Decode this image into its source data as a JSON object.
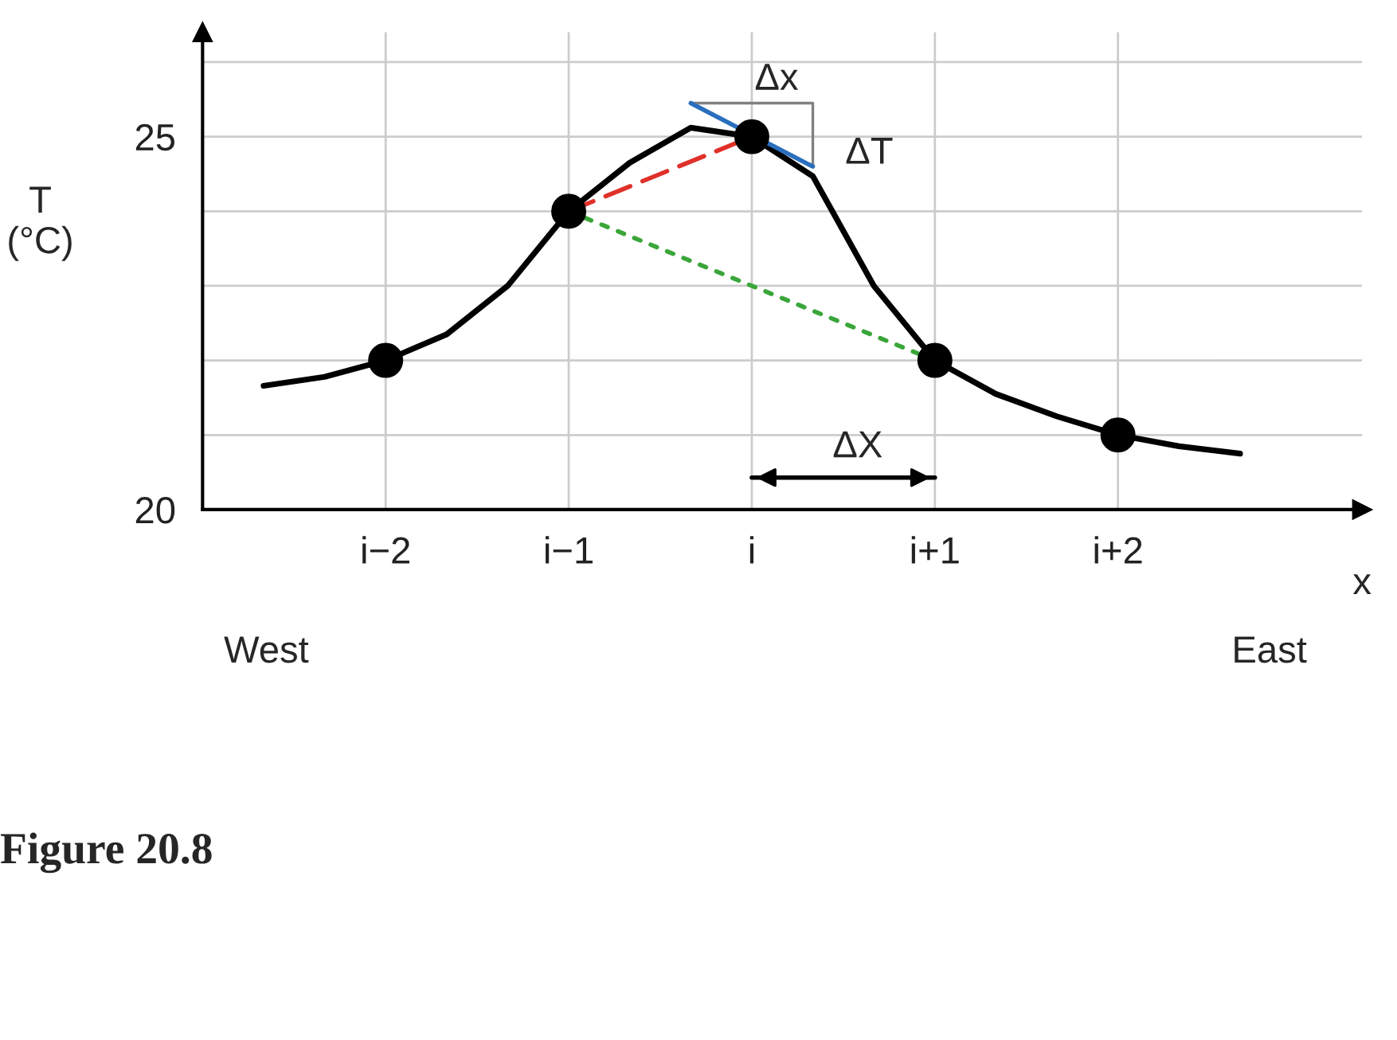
{
  "chart_data": {
    "type": "line",
    "ylabel": "T\n(°C)",
    "xlabel": "x",
    "categories": [
      null,
      null,
      null,
      "i−2",
      null,
      null,
      "i−1",
      null,
      null,
      "i",
      null,
      null,
      "i+1",
      null,
      null,
      "i+2",
      null,
      null,
      null,
      null
    ],
    "ylim": [
      20,
      26.4
    ],
    "yticks": [
      20,
      {
        "value": 21,
        "label": null
      },
      {
        "value": 22,
        "label": null
      },
      {
        "value": 23,
        "label": null
      },
      {
        "value": 24,
        "label": null
      },
      25,
      {
        "value": 26,
        "label": null
      }
    ],
    "grid": true,
    "series": [
      {
        "color": "#000000",
        "line_style": "solid",
        "values": [
          null,
          21.66,
          21.78,
          22.0,
          22.35,
          23.0,
          24.0,
          24.65,
          25.12,
          25.0,
          24.47,
          23.0,
          22.0,
          21.55,
          21.25,
          21.0,
          20.85,
          20.75,
          null,
          null
        ]
      },
      {
        "color": "#e0302a",
        "line_style": "dashed",
        "values": [
          null,
          null,
          null,
          null,
          null,
          null,
          24.0,
          null,
          null,
          25.0,
          null,
          null,
          null,
          null,
          null,
          null,
          null,
          null,
          null,
          null
        ]
      },
      {
        "color": "#3aa63a",
        "line_style": "dotted",
        "values": [
          null,
          null,
          null,
          null,
          null,
          null,
          24.0,
          null,
          null,
          null,
          null,
          null,
          22.0,
          null,
          null,
          null,
          null,
          null,
          null,
          null
        ]
      },
      {
        "color": "#2a6ebd",
        "line_style": "solid",
        "values": [
          null,
          null,
          null,
          null,
          null,
          null,
          null,
          null,
          25.45,
          null,
          24.6,
          null,
          null,
          null,
          null,
          null,
          null,
          null,
          null,
          null
        ]
      },
      {
        "color": "#000000",
        "line_style": "solid",
        "values": [
          null,
          null,
          null,
          null,
          null,
          null,
          null,
          null,
          null,
          20.43,
          null,
          null,
          20.43,
          null,
          null,
          null,
          null,
          null,
          null,
          null
        ]
      },
      {
        "type": "scatter",
        "color": "#000000",
        "marker": "circle",
        "values": [
          null,
          null,
          null,
          22,
          null,
          null,
          24,
          null,
          null,
          25,
          null,
          null,
          22,
          null,
          null,
          21,
          null,
          null,
          null,
          null
        ]
      }
    ],
    "annotations": [
      "Δx",
      "ΔT",
      "ΔX",
      "West",
      "East",
      "Figure 20.8"
    ]
  }
}
